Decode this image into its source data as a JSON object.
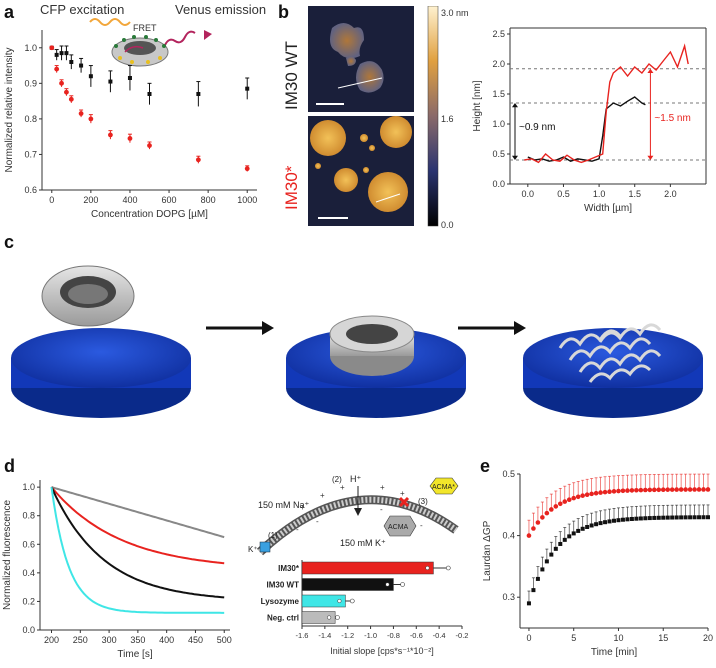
{
  "panels": {
    "a": "a",
    "b": "b",
    "c": "c",
    "d": "d",
    "e": "e"
  },
  "panel_a": {
    "title_left": "CFP excitation",
    "title_right": "Venus emission",
    "fret_label": "FRET",
    "colors": {
      "black": "#111111",
      "red": "#e8231f",
      "ring": "#bbbbbb"
    }
  },
  "panel_b": {
    "wt_label": "IM30 WT",
    "mut_label": "IM30*",
    "colorbar_top": "3.0 nm",
    "colorbar_mid": "1.6",
    "colorbar_bottom": "0.0",
    "ann_low": "~0.9 nm",
    "ann_high": "~1.5 nm"
  },
  "panel_d": {
    "ions_na": "150 mM Na⁺",
    "ions_k": "150 mM K⁺",
    "proton": "H⁺",
    "kplus": "K⁺",
    "step1": "(1)",
    "step2": "(2)",
    "step3": "(3)",
    "acma": "ACMA",
    "acma_star": "ACMA*"
  },
  "chart_data": [
    {
      "id": "a",
      "type": "scatter",
      "title": "",
      "xlabel": "Concentration DOPG [µM]",
      "ylabel": "Normalized relative intensity",
      "xlim": [
        -50,
        1050
      ],
      "ylim": [
        0.6,
        1.05
      ],
      "xticks": [
        0,
        200,
        400,
        600,
        800,
        1000
      ],
      "yticks": [
        0.6,
        0.7,
        0.8,
        0.9,
        1.0
      ],
      "ytick_labels": [
        "0.6",
        "0.7",
        "0.8",
        "0.9",
        "1.0"
      ],
      "series": [
        {
          "name": "black",
          "color": "#111111",
          "x": [
            0,
            25,
            50,
            75,
            100,
            150,
            200,
            300,
            400,
            500,
            750,
            1000
          ],
          "y": [
            1.0,
            0.98,
            0.985,
            0.985,
            0.96,
            0.95,
            0.92,
            0.905,
            0.915,
            0.87,
            0.87,
            0.885
          ],
          "err": [
            0.0,
            0.015,
            0.02,
            0.02,
            0.02,
            0.02,
            0.03,
            0.03,
            0.035,
            0.03,
            0.035,
            0.03
          ]
        },
        {
          "name": "red",
          "color": "#e8231f",
          "x": [
            0,
            25,
            50,
            75,
            100,
            150,
            200,
            300,
            400,
            500,
            750,
            1000
          ],
          "y": [
            1.0,
            0.94,
            0.9,
            0.875,
            0.855,
            0.815,
            0.8,
            0.755,
            0.745,
            0.725,
            0.685,
            0.66
          ],
          "err": [
            0.0,
            0.01,
            0.01,
            0.01,
            0.01,
            0.01,
            0.012,
            0.012,
            0.012,
            0.01,
            0.01,
            0.008
          ]
        }
      ]
    },
    {
      "id": "b",
      "type": "line",
      "title": "",
      "xlabel": "Width [µm]",
      "ylabel": "Height [nm]",
      "xlim": [
        -0.25,
        2.5
      ],
      "ylim": [
        0.0,
        2.6
      ],
      "xticks": [
        0.0,
        0.5,
        1.0,
        1.5,
        2.0
      ],
      "xtick_labels": [
        "0.0",
        "0.5",
        "1.0",
        "1.5",
        "2.0"
      ],
      "yticks": [
        0.0,
        0.5,
        1.0,
        1.5,
        2.0,
        2.5
      ],
      "ytick_labels": [
        "0.0",
        "0.5",
        "1.0",
        "1.5",
        "2.0",
        "2.5"
      ],
      "reference_lines": [
        0.4,
        1.35,
        1.92
      ],
      "series": [
        {
          "name": "IM30 WT",
          "color": "#111111",
          "x": [
            0.0,
            0.1,
            0.2,
            0.3,
            0.4,
            0.5,
            0.6,
            0.7,
            0.8,
            0.9,
            1.0,
            1.05,
            1.1,
            1.15,
            1.2,
            1.3,
            1.4,
            1.5,
            1.6,
            1.65
          ],
          "y": [
            0.45,
            0.4,
            0.42,
            0.38,
            0.4,
            0.45,
            0.38,
            0.42,
            0.4,
            0.38,
            0.42,
            0.8,
            1.25,
            1.3,
            1.35,
            1.3,
            1.38,
            1.45,
            1.35,
            1.32
          ]
        },
        {
          "name": "IM30*",
          "color": "#e8231f",
          "x": [
            -0.05,
            0.05,
            0.15,
            0.25,
            0.35,
            0.45,
            0.55,
            0.65,
            0.75,
            0.85,
            0.95,
            1.05,
            1.1,
            1.15,
            1.2,
            1.3,
            1.4,
            1.5,
            1.6,
            1.7,
            1.8,
            1.9,
            2.0,
            2.1,
            2.2,
            2.25
          ],
          "y": [
            0.4,
            0.42,
            0.36,
            0.5,
            0.4,
            0.38,
            0.48,
            0.4,
            0.36,
            0.4,
            0.45,
            0.5,
            1.2,
            1.7,
            1.85,
            1.95,
            1.8,
            1.95,
            1.85,
            2.0,
            1.9,
            2.05,
            2.2,
            1.95,
            2.3,
            2.0
          ]
        }
      ]
    },
    {
      "id": "d",
      "type": "line",
      "title": "",
      "xlabel": "Time [s]",
      "ylabel": "Normalized fluorescence",
      "xlim": [
        180,
        510
      ],
      "ylim": [
        0.0,
        1.05
      ],
      "xticks": [
        200,
        250,
        300,
        350,
        400,
        450,
        500
      ],
      "yticks": [
        0.0,
        0.2,
        0.4,
        0.6,
        0.8,
        1.0
      ],
      "ytick_labels": [
        "0.0",
        "0.2",
        "0.4",
        "0.6",
        "0.8",
        "1.0"
      ],
      "series": [
        {
          "name": "Neg. ctrl",
          "color": "#888888",
          "final": 0.65,
          "tau": 900
        },
        {
          "name": "IM30*",
          "color": "#e8231f",
          "final": 0.45,
          "tau": 120,
          "plateau": 0.42
        },
        {
          "name": "IM30 WT",
          "color": "#111111",
          "final": 0.24,
          "tau": 90,
          "plateau": 0.2
        },
        {
          "name": "Lysozyme",
          "color": "#3fe6e6",
          "final": 0.13,
          "tau": 30,
          "plateau": 0.12
        }
      ]
    },
    {
      "id": "d-inset",
      "type": "bar",
      "title": "",
      "xlabel": "Initial slope [cps*s⁻¹*10⁻²]",
      "ylabel": "",
      "xlim": [
        -1.6,
        -0.2
      ],
      "xticks": [
        -1.6,
        -1.4,
        -1.2,
        -1.0,
        -0.8,
        -0.6,
        -0.4,
        -0.2
      ],
      "xtick_labels": [
        "-1.6",
        "-1.4",
        "-1.2",
        "-1.0",
        "-0.8",
        "-0.6",
        "-0.4",
        "-0.2"
      ],
      "categories": [
        "IM30*",
        "IM30 WT",
        "Lysozyme",
        "Neg. ctrl"
      ],
      "values": [
        -0.45,
        -0.8,
        -1.22,
        -1.31
      ],
      "errors": [
        0.13,
        0.08,
        0.06,
        0.02
      ],
      "colors": [
        "#e8231f",
        "#111111",
        "#3fe6e6",
        "#bbbbbb"
      ]
    },
    {
      "id": "e",
      "type": "scatter",
      "title": "",
      "xlabel": "Time [min]",
      "ylabel": "Laurdan ΔGP",
      "xlim": [
        -1,
        20
      ],
      "ylim": [
        0.25,
        0.5
      ],
      "xticks": [
        0,
        5,
        10,
        15,
        20
      ],
      "yticks": [
        0.3,
        0.4,
        0.5
      ],
      "ytick_labels": [
        "0.3",
        "0.4",
        "0.5"
      ],
      "series": [
        {
          "name": "IM30*",
          "color": "#e8231f",
          "y0": 0.4,
          "ymax": 0.475,
          "err": 0.025
        },
        {
          "name": "IM30 WT",
          "color": "#111111",
          "y0": 0.29,
          "ymax": 0.43,
          "err": 0.02
        }
      ]
    }
  ]
}
